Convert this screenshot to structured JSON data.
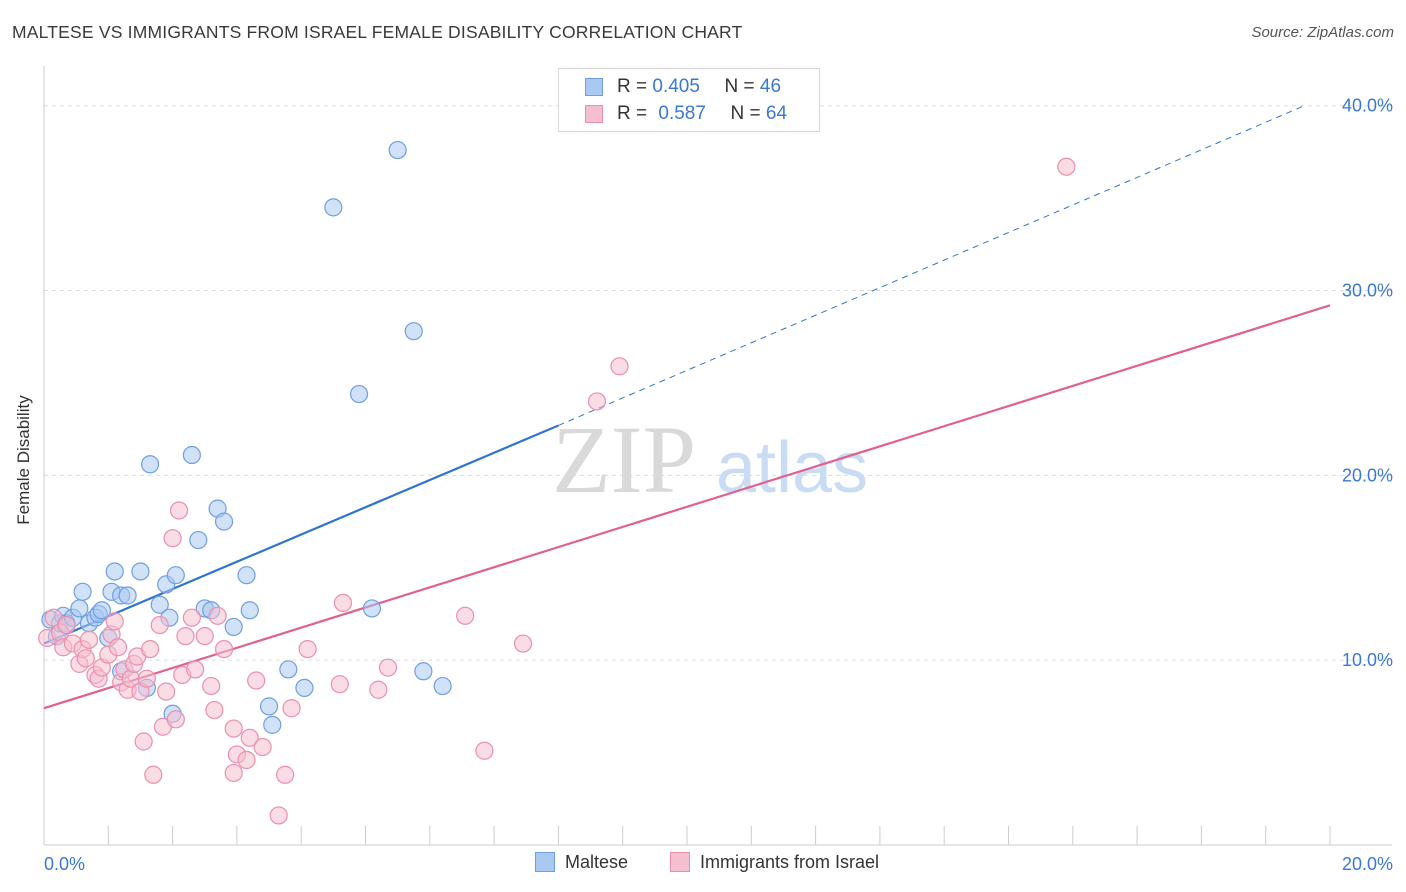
{
  "title": "MALTESE VS IMMIGRANTS FROM ISRAEL FEMALE DISABILITY CORRELATION CHART",
  "source": "Source: ZipAtlas.com",
  "watermark": {
    "zip": "ZIP",
    "atlas": "atlas"
  },
  "legend": {
    "rows": [
      {
        "r_label": "R =",
        "r_value": "0.405",
        "n_label": "N =",
        "n_value": "46"
      },
      {
        "r_label": "R =",
        "r_value": "0.587",
        "n_label": "N =",
        "n_value": "64"
      }
    ]
  },
  "colors": {
    "maltese_fill": "#a9c8f2",
    "maltese_stroke": "#6f9fe0",
    "maltese_line": "#2f74d0",
    "israel_fill": "#f6bfd0",
    "israel_stroke": "#ea8fae",
    "israel_line": "#e0608e",
    "axis_label": "#3a78d6",
    "grid": "#dcdcdc"
  },
  "chart_data": {
    "type": "scatter",
    "xlabel": "",
    "ylabel": "Female Disability",
    "xlim": [
      0,
      20
    ],
    "ylim": [
      0,
      41.5
    ],
    "x_ticks": [
      {
        "value": 0,
        "label": "0.0%"
      },
      {
        "value": 20,
        "label": "20.0%"
      }
    ],
    "y_ticks": [
      {
        "value": 10,
        "label": "10.0%"
      },
      {
        "value": 20,
        "label": "20.0%"
      },
      {
        "value": 30,
        "label": "30.0%"
      },
      {
        "value": 40,
        "label": "40.0%"
      }
    ],
    "grid": true,
    "legend_position": "top-center",
    "series": [
      {
        "name": "Maltese",
        "trend": {
          "x0": 0,
          "y0": 10.9,
          "x1": 8.0,
          "y1": 22.7,
          "dashed_to_x": 19.6,
          "dashed_to_y": 40.0
        },
        "points": [
          [
            0.1,
            12.2
          ],
          [
            0.2,
            11.3
          ],
          [
            0.25,
            12.0
          ],
          [
            0.3,
            12.4
          ],
          [
            0.35,
            12.0
          ],
          [
            0.45,
            12.3
          ],
          [
            0.55,
            12.8
          ],
          [
            0.6,
            13.7
          ],
          [
            0.7,
            12.0
          ],
          [
            0.8,
            12.3
          ],
          [
            0.85,
            12.5
          ],
          [
            0.9,
            12.7
          ],
          [
            1.0,
            11.2
          ],
          [
            1.05,
            13.7
          ],
          [
            1.1,
            14.8
          ],
          [
            1.2,
            13.5
          ],
          [
            1.3,
            13.5
          ],
          [
            1.5,
            14.8
          ],
          [
            1.65,
            20.6
          ],
          [
            1.8,
            13.0
          ],
          [
            1.9,
            14.1
          ],
          [
            1.95,
            12.3
          ],
          [
            2.05,
            14.6
          ],
          [
            2.3,
            21.1
          ],
          [
            2.4,
            16.5
          ],
          [
            2.5,
            12.8
          ],
          [
            2.6,
            12.7
          ],
          [
            2.7,
            18.2
          ],
          [
            2.8,
            17.5
          ],
          [
            2.95,
            11.8
          ],
          [
            3.15,
            14.6
          ],
          [
            3.2,
            12.7
          ],
          [
            3.5,
            7.5
          ],
          [
            3.55,
            6.5
          ],
          [
            3.8,
            9.5
          ],
          [
            4.05,
            8.5
          ],
          [
            4.5,
            34.5
          ],
          [
            4.9,
            24.4
          ],
          [
            5.1,
            12.8
          ],
          [
            5.5,
            37.6
          ],
          [
            5.75,
            27.8
          ],
          [
            5.9,
            9.4
          ],
          [
            6.2,
            8.6
          ],
          [
            1.2,
            9.4
          ],
          [
            1.6,
            8.5
          ],
          [
            2.0,
            7.1
          ]
        ]
      },
      {
        "name": "Immigrants from Israel",
        "trend": {
          "x0": 0,
          "y0": 7.4,
          "x1": 20.0,
          "y1": 29.2
        },
        "points": [
          [
            0.05,
            11.2
          ],
          [
            0.15,
            12.3
          ],
          [
            0.25,
            11.5
          ],
          [
            0.3,
            10.7
          ],
          [
            0.35,
            11.9
          ],
          [
            0.45,
            10.9
          ],
          [
            0.55,
            9.8
          ],
          [
            0.6,
            10.6
          ],
          [
            0.65,
            10.1
          ],
          [
            0.7,
            11.1
          ],
          [
            0.8,
            9.2
          ],
          [
            0.85,
            9.0
          ],
          [
            0.9,
            9.6
          ],
          [
            1.0,
            10.3
          ],
          [
            1.05,
            11.4
          ],
          [
            1.1,
            12.1
          ],
          [
            1.15,
            10.7
          ],
          [
            1.2,
            8.8
          ],
          [
            1.25,
            9.5
          ],
          [
            1.3,
            8.4
          ],
          [
            1.35,
            9.0
          ],
          [
            1.4,
            9.8
          ],
          [
            1.45,
            10.2
          ],
          [
            1.5,
            8.3
          ],
          [
            1.6,
            9.0
          ],
          [
            1.65,
            10.6
          ],
          [
            1.7,
            3.8
          ],
          [
            1.8,
            11.9
          ],
          [
            1.85,
            6.4
          ],
          [
            1.9,
            8.3
          ],
          [
            2.0,
            16.6
          ],
          [
            2.05,
            6.8
          ],
          [
            2.1,
            18.1
          ],
          [
            2.15,
            9.2
          ],
          [
            2.2,
            11.3
          ],
          [
            2.3,
            12.3
          ],
          [
            2.35,
            9.5
          ],
          [
            2.5,
            11.3
          ],
          [
            2.6,
            8.6
          ],
          [
            2.65,
            7.3
          ],
          [
            2.7,
            12.4
          ],
          [
            2.8,
            10.6
          ],
          [
            2.95,
            3.9
          ],
          [
            3.0,
            4.9
          ],
          [
            3.15,
            4.6
          ],
          [
            3.2,
            5.8
          ],
          [
            3.3,
            8.9
          ],
          [
            3.4,
            5.3
          ],
          [
            3.65,
            1.6
          ],
          [
            3.75,
            3.8
          ],
          [
            3.85,
            7.4
          ],
          [
            4.1,
            10.6
          ],
          [
            4.6,
            8.7
          ],
          [
            4.65,
            13.1
          ],
          [
            5.2,
            8.4
          ],
          [
            5.35,
            9.6
          ],
          [
            6.55,
            12.4
          ],
          [
            6.85,
            5.1
          ],
          [
            7.45,
            10.9
          ],
          [
            8.6,
            24.0
          ],
          [
            8.95,
            25.9
          ],
          [
            15.9,
            36.7
          ],
          [
            2.95,
            6.3
          ],
          [
            1.55,
            5.6
          ]
        ]
      }
    ]
  }
}
